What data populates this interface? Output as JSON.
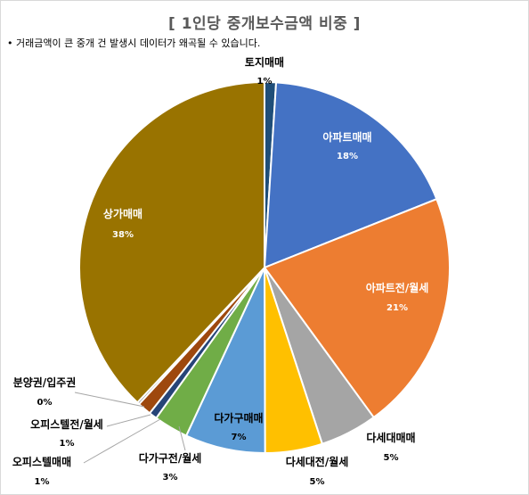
{
  "title": "[ 1인당 중개보수금액 비중 ]",
  "note": "• 거래금액이 큰 중개 건 발생시 데이터가 왜곡될 수 있습니다.",
  "chart_data": {
    "type": "pie",
    "title": "[ 1인당 중개보수금액 비중 ]",
    "slices": [
      {
        "label": "토지매매",
        "value": 1,
        "pct_label": "1%",
        "color": "#1f4e79"
      },
      {
        "label": "아파트매매",
        "value": 18,
        "pct_label": "18%",
        "color": "#4472c4"
      },
      {
        "label": "아파트전/월세",
        "value": 21,
        "pct_label": "21%",
        "color": "#ed7d31"
      },
      {
        "label": "다세대매매",
        "value": 5,
        "pct_label": "5%",
        "color": "#a5a5a5"
      },
      {
        "label": "다세대전/월세",
        "value": 5,
        "pct_label": "5%",
        "color": "#ffc000"
      },
      {
        "label": "다가구매매",
        "value": 7,
        "pct_label": "7%",
        "color": "#5b9bd5"
      },
      {
        "label": "다가구전/월세",
        "value": 3,
        "pct_label": "3%",
        "color": "#70ad47"
      },
      {
        "label": "오피스텔매매",
        "value": 0.7,
        "pct_label": "1%",
        "color": "#264478"
      },
      {
        "label": "오피스텔전/월세",
        "value": 1.2,
        "pct_label": "1%",
        "color": "#9e480e"
      },
      {
        "label": "분양권/입주권",
        "value": 0.2,
        "pct_label": "0%",
        "color": "#636363"
      },
      {
        "label": "상가매매",
        "value": 38,
        "pct_label": "38%",
        "color": "#997300"
      }
    ]
  }
}
